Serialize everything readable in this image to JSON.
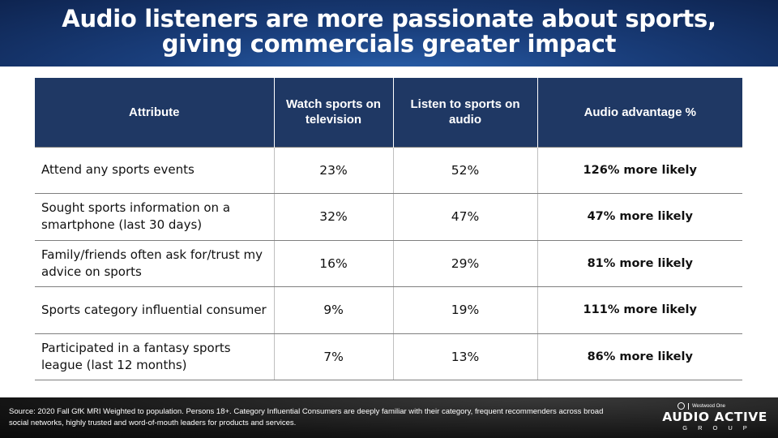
{
  "title": {
    "line1": "Audio listeners are more passionate about sports,",
    "line2": "giving commercials greater impact"
  },
  "table": {
    "headers": [
      "Attribute",
      "Watch sports on television",
      "Listen to sports on audio",
      "Audio advantage %"
    ],
    "rows": [
      {
        "attribute": "Attend any sports events",
        "tv": "23%",
        "audio": "52%",
        "advantage": "126% more likely"
      },
      {
        "attribute": "Sought sports information on a smartphone (last 30 days)",
        "tv": "32%",
        "audio": "47%",
        "advantage": "47% more likely"
      },
      {
        "attribute": "Family/friends often ask for/trust my advice on sports",
        "tv": "16%",
        "audio": "29%",
        "advantage": "81% more likely"
      },
      {
        "attribute": "Sports category influential consumer",
        "tv": "9%",
        "audio": "19%",
        "advantage": "111% more likely"
      },
      {
        "attribute": "Participated in a fantasy sports league (last 12 months)",
        "tv": "7%",
        "audio": "13%",
        "advantage": "86% more likely"
      }
    ]
  },
  "footer": {
    "source": "Source: 2020 Fall GfK MRI Weighted to population. Persons 18+. Category Influential Consumers are deeply familiar with their category, frequent recommenders across broad social networks, highly trusted and word-of-mouth leaders for products and services."
  },
  "brand": {
    "partner": "Westwood One",
    "name": "AUDIO ACTIVE",
    "sub": "GROUP",
    "icon": "cumulus-circle-icon"
  },
  "colors": {
    "header_bg": "#1a3f7d",
    "table_header_bg": "#1f3864",
    "footer_bg": "#141414"
  }
}
